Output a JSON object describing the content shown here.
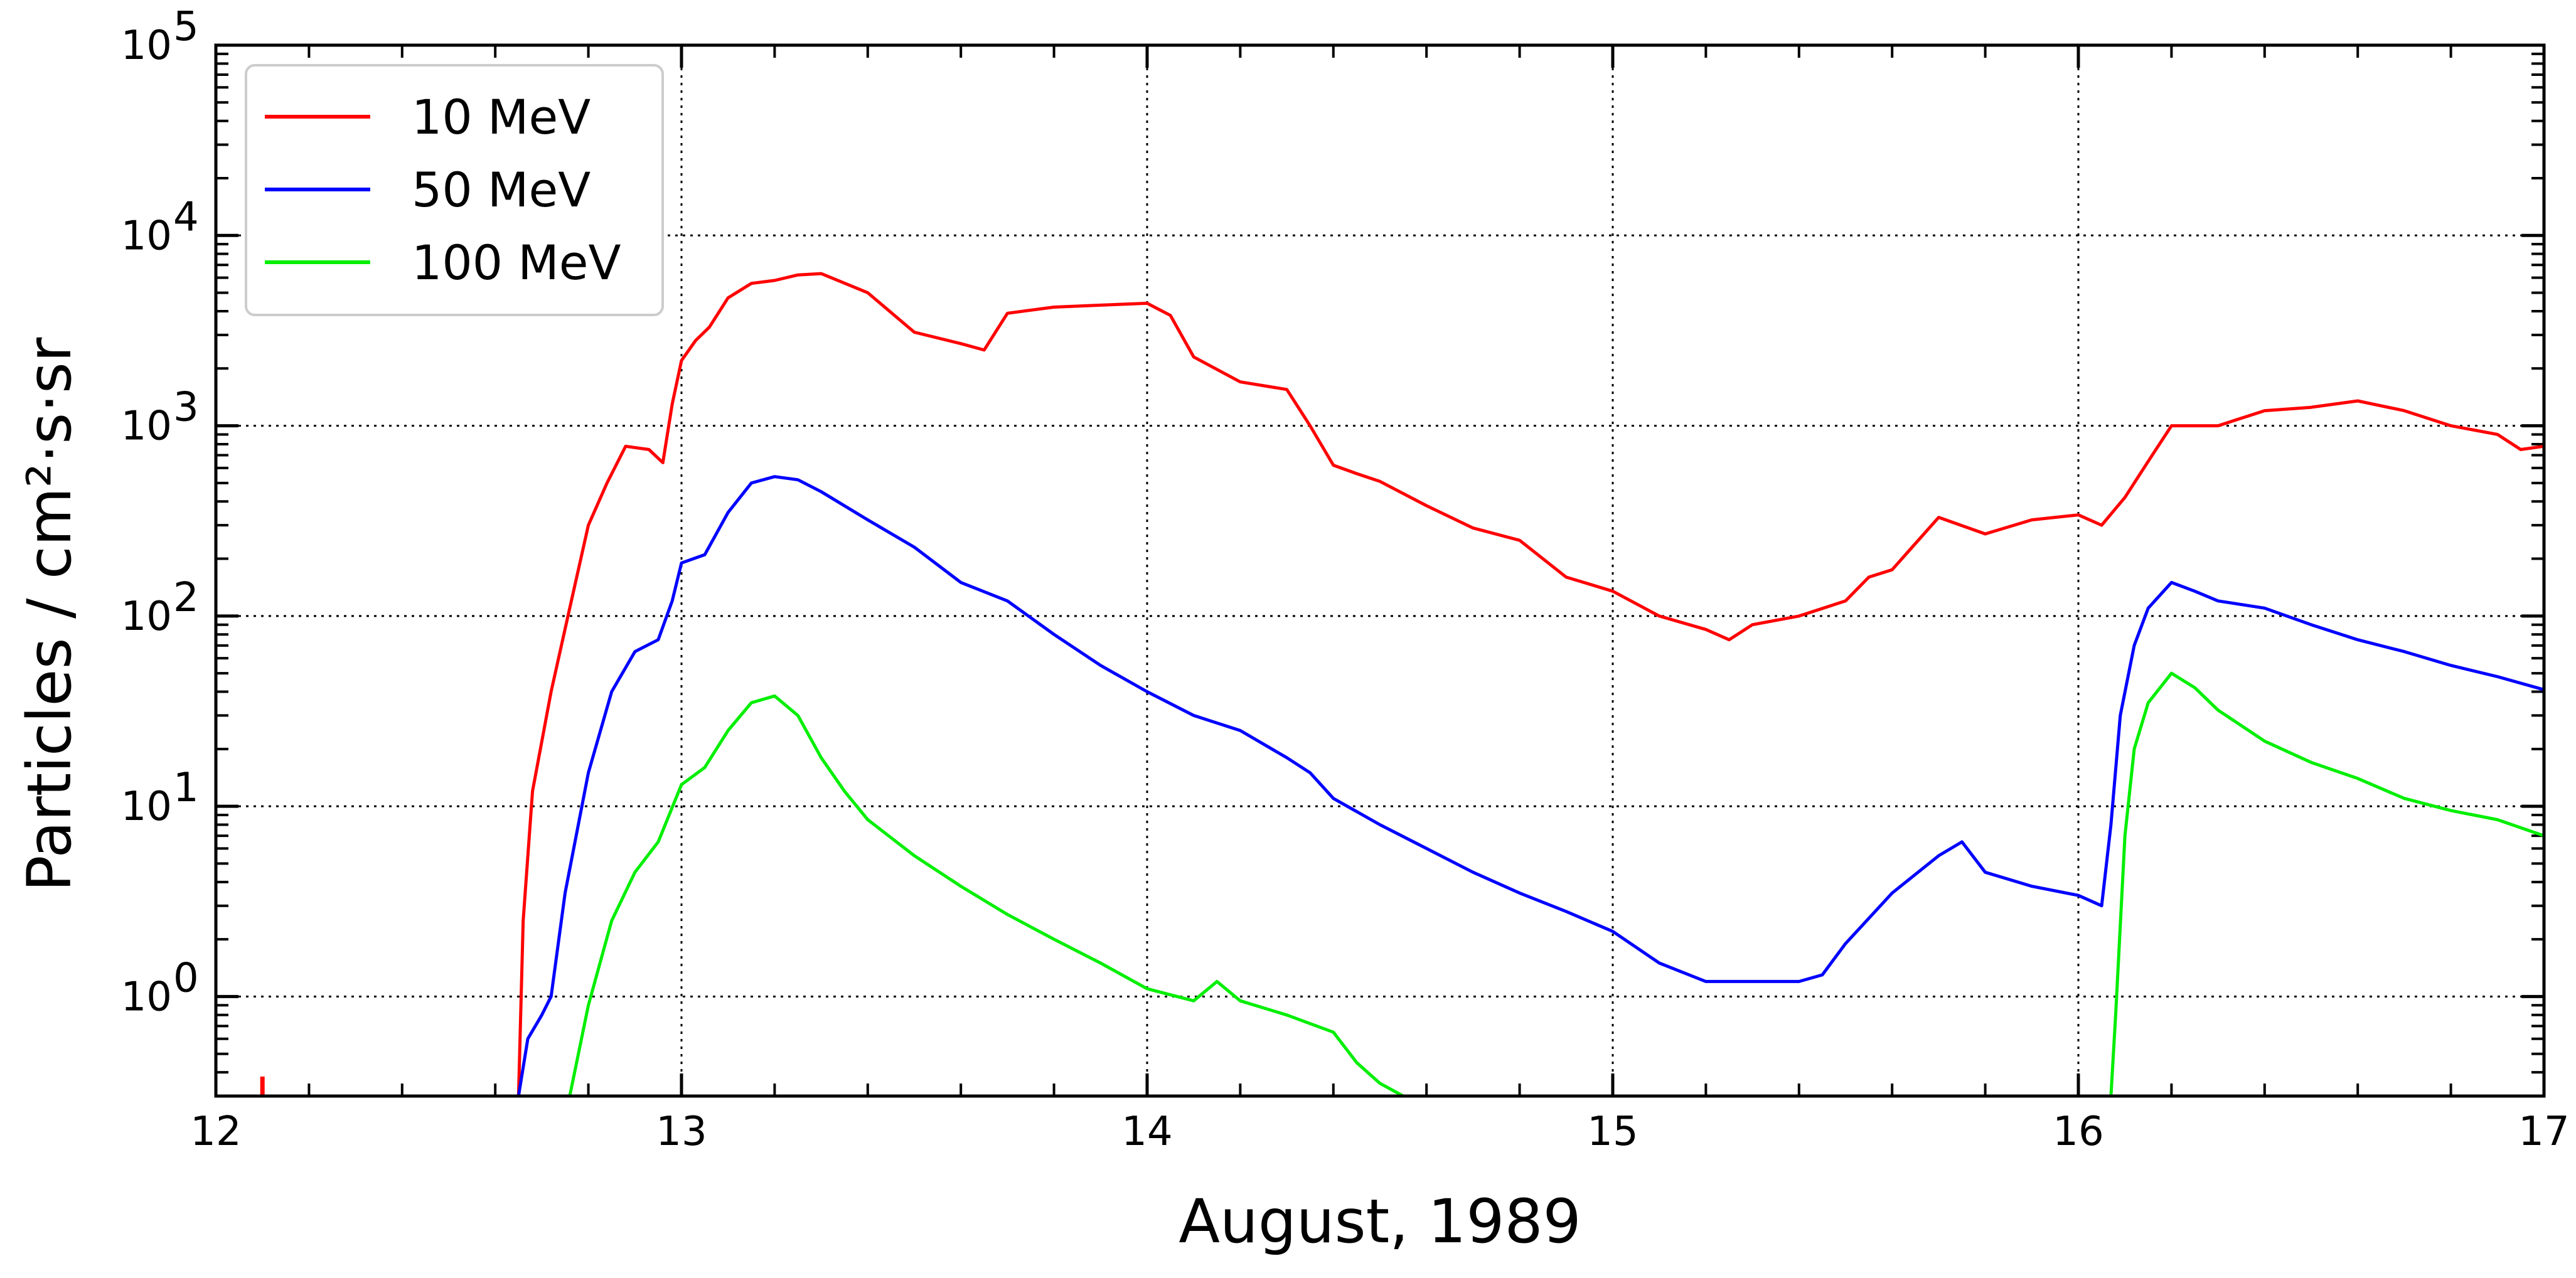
{
  "chart_data": {
    "type": "line",
    "title": "",
    "xlabel": "August, 1989",
    "ylabel": "Particles / cm²·s·sr",
    "xlim": [
      12,
      17
    ],
    "ylim": [
      0.3,
      100000
    ],
    "yscale": "log",
    "grid": true,
    "legend_position": "top-left",
    "x_ticks": [
      12,
      13,
      14,
      15,
      16,
      17
    ],
    "x_tick_labels": [
      "12",
      "13",
      "14",
      "15",
      "16",
      "17"
    ],
    "y_tick_labels": [
      {
        "base": "10",
        "exp": "0"
      },
      {
        "base": "10",
        "exp": "1"
      },
      {
        "base": "10",
        "exp": "2"
      },
      {
        "base": "10",
        "exp": "3"
      },
      {
        "base": "10",
        "exp": "4"
      },
      {
        "base": "10",
        "exp": "5"
      }
    ],
    "series": [
      {
        "name": "10 MeV",
        "color": "#ff0000",
        "x": [
          12.1,
          12.1,
          12.65,
          12.66,
          12.68,
          12.72,
          12.76,
          12.8,
          12.84,
          12.88,
          12.93,
          12.96,
          12.98,
          13.0,
          13.03,
          13.06,
          13.1,
          13.15,
          13.2,
          13.25,
          13.3,
          13.4,
          13.5,
          13.6,
          13.65,
          13.7,
          13.8,
          13.9,
          14.0,
          14.05,
          14.1,
          14.2,
          14.3,
          14.35,
          14.4,
          14.45,
          14.5,
          14.6,
          14.7,
          14.8,
          14.9,
          15.0,
          15.1,
          15.2,
          15.25,
          15.3,
          15.4,
          15.5,
          15.55,
          15.6,
          15.7,
          15.8,
          15.9,
          16.0,
          16.05,
          16.1,
          16.15,
          16.2,
          16.3,
          16.4,
          16.5,
          16.6,
          16.7,
          16.8,
          16.9,
          16.95,
          17.0
        ],
        "y": [
          0.3,
          0.38,
          0.3,
          2.5,
          12,
          40,
          110,
          300,
          500,
          780,
          750,
          640,
          1300,
          2200,
          2800,
          3300,
          4700,
          5600,
          5800,
          6200,
          6300,
          5000,
          3100,
          2700,
          2500,
          3900,
          4200,
          4300,
          4400,
          3800,
          2300,
          1700,
          1550,
          1000,
          620,
          560,
          510,
          380,
          290,
          250,
          160,
          135,
          100,
          85,
          75,
          90,
          100,
          120,
          160,
          175,
          330,
          270,
          320,
          340,
          300,
          420,
          650,
          1000,
          1000,
          1200,
          1250,
          1350,
          1200,
          1000,
          900,
          750,
          780
        ]
      },
      {
        "name": "50 MeV",
        "color": "#0000ff",
        "x": [
          12.65,
          12.67,
          12.7,
          12.72,
          12.75,
          12.8,
          12.85,
          12.9,
          12.95,
          12.98,
          13.0,
          13.05,
          13.1,
          13.15,
          13.2,
          13.25,
          13.3,
          13.4,
          13.5,
          13.6,
          13.7,
          13.8,
          13.9,
          14.0,
          14.1,
          14.2,
          14.3,
          14.35,
          14.4,
          14.5,
          14.6,
          14.7,
          14.8,
          14.9,
          15.0,
          15.1,
          15.2,
          15.3,
          15.4,
          15.45,
          15.5,
          15.6,
          15.7,
          15.75,
          15.8,
          15.9,
          16.0,
          16.05,
          16.07,
          16.09,
          16.12,
          16.15,
          16.2,
          16.25,
          16.3,
          16.4,
          16.5,
          16.6,
          16.7,
          16.8,
          16.9,
          17.0
        ],
        "y": [
          0.3,
          0.6,
          0.8,
          1.0,
          3.5,
          15,
          40,
          65,
          75,
          120,
          190,
          210,
          350,
          500,
          540,
          520,
          450,
          320,
          230,
          150,
          120,
          80,
          55,
          40,
          30,
          25,
          18,
          15,
          11,
          8,
          6,
          4.5,
          3.5,
          2.8,
          2.2,
          1.5,
          1.2,
          1.2,
          1.2,
          1.3,
          1.9,
          3.5,
          5.5,
          6.5,
          4.5,
          3.8,
          3.4,
          3.0,
          8,
          30,
          70,
          110,
          150,
          135,
          120,
          110,
          90,
          75,
          65,
          55,
          48,
          41
        ]
      },
      {
        "name": "100 MeV",
        "color": "#00ee00",
        "x": [
          12.76,
          12.8,
          12.85,
          12.9,
          12.95,
          13.0,
          13.05,
          13.1,
          13.15,
          13.2,
          13.25,
          13.3,
          13.35,
          13.4,
          13.5,
          13.6,
          13.7,
          13.8,
          13.9,
          14.0,
          14.1,
          14.15,
          14.2,
          14.3,
          14.4,
          14.45,
          14.5,
          14.55,
          14.58,
          16.07,
          16.08,
          16.1,
          16.12,
          16.15,
          16.2,
          16.25,
          16.3,
          16.4,
          16.5,
          16.6,
          16.7,
          16.8,
          16.9,
          17.0
        ],
        "y": [
          0.3,
          0.9,
          2.5,
          4.5,
          6.5,
          13,
          16,
          25,
          35,
          38,
          30,
          18,
          12,
          8.5,
          5.5,
          3.8,
          2.7,
          2.0,
          1.5,
          1.1,
          0.95,
          1.2,
          0.95,
          0.8,
          0.65,
          0.45,
          0.35,
          0.3,
          0.3,
          0.3,
          0.8,
          7,
          20,
          35,
          50,
          42,
          32,
          22,
          17,
          14,
          11,
          9.5,
          8.5,
          7
        ]
      }
    ]
  }
}
